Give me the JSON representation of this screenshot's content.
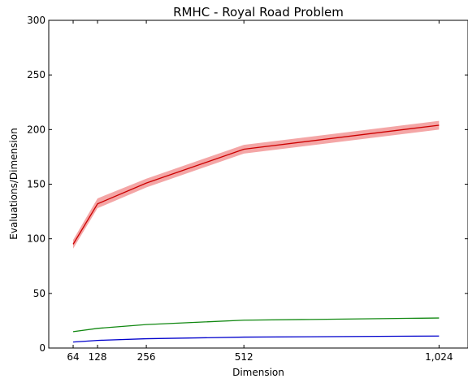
{
  "chart_data": {
    "type": "line",
    "title": "RMHC - Royal Road Problem",
    "xlabel": "Dimension",
    "ylabel": "Evaluations/Dimension",
    "x": [
      64,
      128,
      256,
      512,
      1024
    ],
    "x_tick_labels": [
      "64",
      "128",
      "256",
      "512",
      "1,024"
    ],
    "xlim": [
      0,
      1100
    ],
    "ylim": [
      0,
      300
    ],
    "y_ticks": [
      0,
      50,
      100,
      150,
      200,
      250,
      300
    ],
    "grid": false,
    "series": [
      {
        "color": "#cc0000",
        "band_color": "#f4a6a6",
        "values": [
          95,
          132,
          151,
          182,
          204
        ],
        "lower": [
          91,
          128,
          147,
          178,
          200
        ],
        "upper": [
          99,
          137,
          155,
          186,
          208
        ]
      },
      {
        "color": "#118811",
        "values": [
          15,
          18,
          21.5,
          25.5,
          27.5
        ]
      },
      {
        "color": "#0000cc",
        "values": [
          5.5,
          7,
          8.5,
          10,
          11
        ]
      }
    ]
  }
}
